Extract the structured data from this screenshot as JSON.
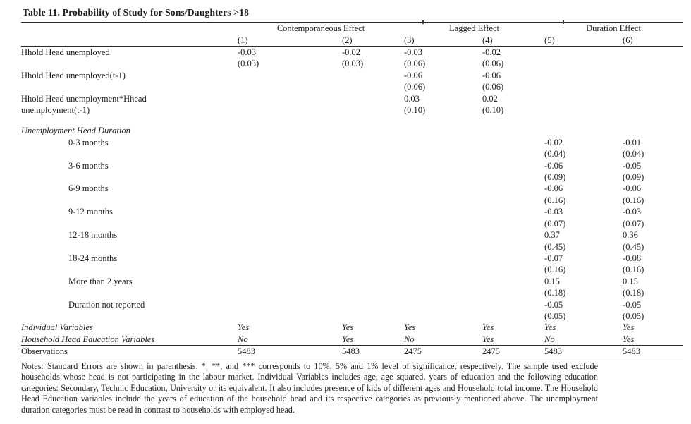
{
  "page": {
    "background_color": "#ffffff",
    "text_color": "#1e1e1e",
    "rule_color": "#2a2a2a"
  },
  "title": "Table 11. Probability of Study for Sons/Daughters >18",
  "table": {
    "column_groups": [
      {
        "label": "Contemporaneous Effect",
        "span": 2
      },
      {
        "label": "Lagged Effect",
        "span": 2
      },
      {
        "label": "Duration Effect",
        "span": 2
      }
    ],
    "column_numbers": [
      "(1)",
      "(2)",
      "(3)",
      "(4)",
      "(5)",
      "(6)"
    ],
    "rows": [
      {
        "label": "Hhold Head unemployed",
        "values": [
          "-0.03",
          "-0.02",
          "-0.03",
          "-0.02",
          "",
          ""
        ]
      },
      {
        "label": "",
        "values": [
          "(0.03)",
          "(0.03)",
          "(0.06)",
          "(0.06)",
          "",
          ""
        ]
      },
      {
        "label": "Hhold Head unemployed(t-1)",
        "values": [
          "",
          "",
          "-0.06",
          "-0.06",
          "",
          ""
        ]
      },
      {
        "label": "",
        "values": [
          "",
          "",
          "(0.06)",
          "(0.06)",
          "",
          ""
        ]
      },
      {
        "label": "Hhold Head unemployment*Hhead",
        "values": [
          "",
          "",
          "0.03",
          "0.02",
          "",
          ""
        ]
      },
      {
        "label": "unemployment(t-1)",
        "values": [
          "",
          "",
          "(0.10)",
          "(0.10)",
          "",
          ""
        ]
      },
      {
        "spacer": true
      },
      {
        "label": "Unemployment Head Duration",
        "label_italic": true,
        "values": [
          "",
          "",
          "",
          "",
          "",
          ""
        ]
      },
      {
        "label": "0-3 months",
        "indent": true,
        "values": [
          "",
          "",
          "",
          "",
          "-0.02",
          "-0.01"
        ]
      },
      {
        "label": "",
        "values": [
          "",
          "",
          "",
          "",
          "(0.04)",
          "(0.04)"
        ]
      },
      {
        "label": "3-6 months",
        "indent": true,
        "values": [
          "",
          "",
          "",
          "",
          "-0.06",
          "-0.05"
        ]
      },
      {
        "label": "",
        "values": [
          "",
          "",
          "",
          "",
          "(0.09)",
          "(0.09)"
        ]
      },
      {
        "label": "6-9 months",
        "indent": true,
        "values": [
          "",
          "",
          "",
          "",
          "-0.06",
          "-0.06"
        ]
      },
      {
        "label": "",
        "values": [
          "",
          "",
          "",
          "",
          "(0.16)",
          "(0.16)"
        ]
      },
      {
        "label": "9-12 months",
        "indent": true,
        "values": [
          "",
          "",
          "",
          "",
          "-0.03",
          "-0.03"
        ]
      },
      {
        "label": "",
        "values": [
          "",
          "",
          "",
          "",
          "(0.07)",
          "(0.07)"
        ]
      },
      {
        "label": "12-18 months",
        "indent": true,
        "values": [
          "",
          "",
          "",
          "",
          "0.37",
          "0.36"
        ]
      },
      {
        "label": "",
        "values": [
          "",
          "",
          "",
          "",
          "(0.45)",
          "(0.45)"
        ]
      },
      {
        "label": "18-24 months",
        "indent": true,
        "values": [
          "",
          "",
          "",
          "",
          "-0.07",
          "-0.08"
        ]
      },
      {
        "label": "",
        "values": [
          "",
          "",
          "",
          "",
          "(0.16)",
          "(0.16)"
        ]
      },
      {
        "label": "More than 2 years",
        "indent": true,
        "values": [
          "",
          "",
          "",
          "",
          "0.15",
          "0.15"
        ]
      },
      {
        "label": "",
        "values": [
          "",
          "",
          "",
          "",
          "(0.18)",
          "(0.18)"
        ]
      },
      {
        "label": "Duration not reported",
        "indent": true,
        "values": [
          "",
          "",
          "",
          "",
          "-0.05",
          "-0.05"
        ]
      },
      {
        "label": "",
        "values": [
          "",
          "",
          "",
          "",
          "(0.05)",
          "(0.05)"
        ]
      },
      {
        "label": "Individual Variables",
        "label_italic": true,
        "values_italic": true,
        "values": [
          "Yes",
          "Yes",
          "Yes",
          "Yes",
          "Yes",
          "Yes"
        ]
      },
      {
        "label": "Household Head Education Variables",
        "label_italic": true,
        "values_italic": true,
        "values": [
          "No",
          "Yes",
          "No",
          "Yes",
          "No",
          "Yes"
        ]
      },
      {
        "label": "Observations",
        "rule_above": true,
        "rule_below": true,
        "values": [
          "5483",
          "5483",
          "2475",
          "2475",
          "5483",
          "5483"
        ]
      }
    ]
  },
  "notes": "Notes: Standard Errors are shown in parenthesis. *, **, and *** corresponds to 10%, 5% and 1% level of significance, respectively. The sample used exclude households whose head is not participating in the labour market. Individual Variables includes age, age squared, years of education and the following education categories: Secondary, Technic Education, University or its equivalent. It also includes presence of kids of different ages and Household total income. The Household Head Education variables include the years of education of the household head and its respective categories as previously mentioned above. The unemployment duration categories must be read in contrast to households with employed head."
}
